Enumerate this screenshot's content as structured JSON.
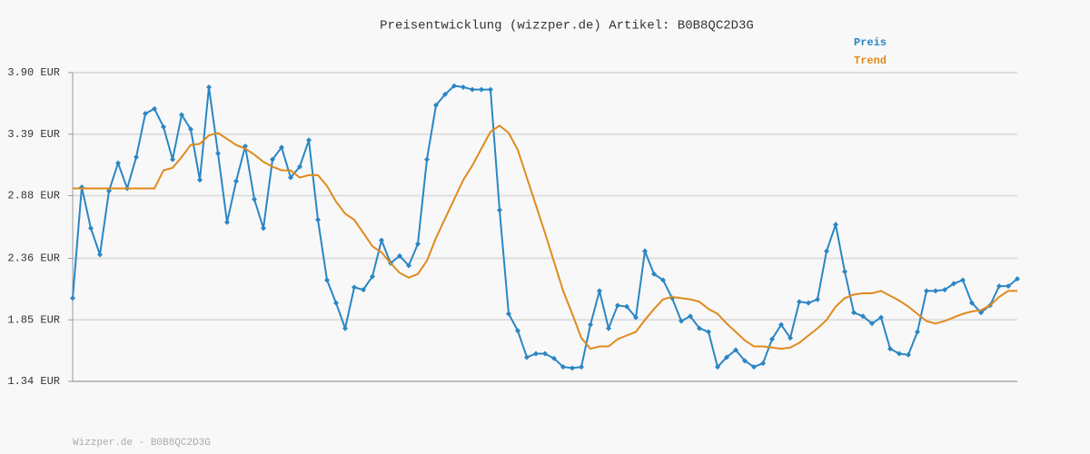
{
  "chart_data": {
    "type": "line",
    "title": "Preisentwicklung (wizzper.de) Artikel: B0B8QC2D3G",
    "footer": "Wizzper.de - B0B8QC2D3G",
    "ylim": [
      1.34,
      3.9
    ],
    "yticks": [
      {
        "value": 1.34,
        "label": "1.34 EUR"
      },
      {
        "value": 1.85,
        "label": "1.85 EUR"
      },
      {
        "value": 2.36,
        "label": "2.36 EUR"
      },
      {
        "value": 2.88,
        "label": "2.88 EUR"
      },
      {
        "value": 3.39,
        "label": "3.39 EUR"
      },
      {
        "value": 3.9,
        "label": "3.90 EUR"
      }
    ],
    "grid": true,
    "legend": "top-right",
    "series": [
      {
        "name": "Preis",
        "color": "#2a86c4",
        "markers": true,
        "values": [
          2.03,
          2.95,
          2.61,
          2.39,
          2.92,
          3.15,
          2.94,
          3.2,
          3.56,
          3.6,
          3.45,
          3.18,
          3.55,
          3.43,
          3.01,
          3.78,
          3.23,
          2.66,
          3.0,
          3.29,
          2.85,
          2.61,
          3.18,
          3.28,
          3.03,
          3.12,
          3.34,
          2.68,
          2.18,
          1.99,
          1.78,
          2.12,
          2.1,
          2.21,
          2.51,
          2.32,
          2.38,
          2.3,
          2.48,
          3.18,
          3.63,
          3.72,
          3.79,
          3.78,
          3.76,
          3.76,
          3.76,
          2.76,
          1.9,
          1.76,
          1.54,
          1.57,
          1.57,
          1.53,
          1.46,
          1.45,
          1.46,
          1.81,
          2.09,
          1.78,
          1.97,
          1.96,
          1.87,
          2.42,
          2.23,
          2.18,
          2.03,
          1.84,
          1.88,
          1.78,
          1.75,
          1.46,
          1.54,
          1.6,
          1.51,
          1.46,
          1.49,
          1.69,
          1.81,
          1.7,
          2.0,
          1.99,
          2.02,
          2.42,
          2.64,
          2.25,
          1.91,
          1.88,
          1.82,
          1.87,
          1.61,
          1.57,
          1.56,
          1.75,
          2.09,
          2.09,
          2.1,
          2.15,
          2.18,
          1.99,
          1.91,
          1.97,
          2.13,
          2.13,
          2.19
        ]
      },
      {
        "name": "Trend",
        "color": "#e08a1e",
        "markers": false,
        "values": [
          2.94,
          2.94,
          2.94,
          2.94,
          2.94,
          2.94,
          2.94,
          2.94,
          2.94,
          2.94,
          3.09,
          3.11,
          3.2,
          3.3,
          3.31,
          3.38,
          3.4,
          3.35,
          3.3,
          3.27,
          3.22,
          3.16,
          3.12,
          3.09,
          3.09,
          3.03,
          3.05,
          3.05,
          2.96,
          2.83,
          2.73,
          2.68,
          2.57,
          2.46,
          2.41,
          2.32,
          2.24,
          2.2,
          2.23,
          2.34,
          2.53,
          2.69,
          2.85,
          3.01,
          3.13,
          3.27,
          3.41,
          3.46,
          3.4,
          3.26,
          3.03,
          2.8,
          2.57,
          2.33,
          2.09,
          1.9,
          1.7,
          1.61,
          1.63,
          1.63,
          1.69,
          1.72,
          1.75,
          1.85,
          1.94,
          2.02,
          2.04,
          2.03,
          2.02,
          2.0,
          1.94,
          1.9,
          1.82,
          1.75,
          1.68,
          1.63,
          1.63,
          1.62,
          1.61,
          1.62,
          1.66,
          1.72,
          1.78,
          1.85,
          1.96,
          2.03,
          2.06,
          2.07,
          2.07,
          2.09,
          2.05,
          2.01,
          1.96,
          1.9,
          1.84,
          1.82,
          1.84,
          1.87,
          1.9,
          1.92,
          1.93,
          1.97,
          2.04,
          2.09,
          2.09
        ]
      }
    ]
  }
}
